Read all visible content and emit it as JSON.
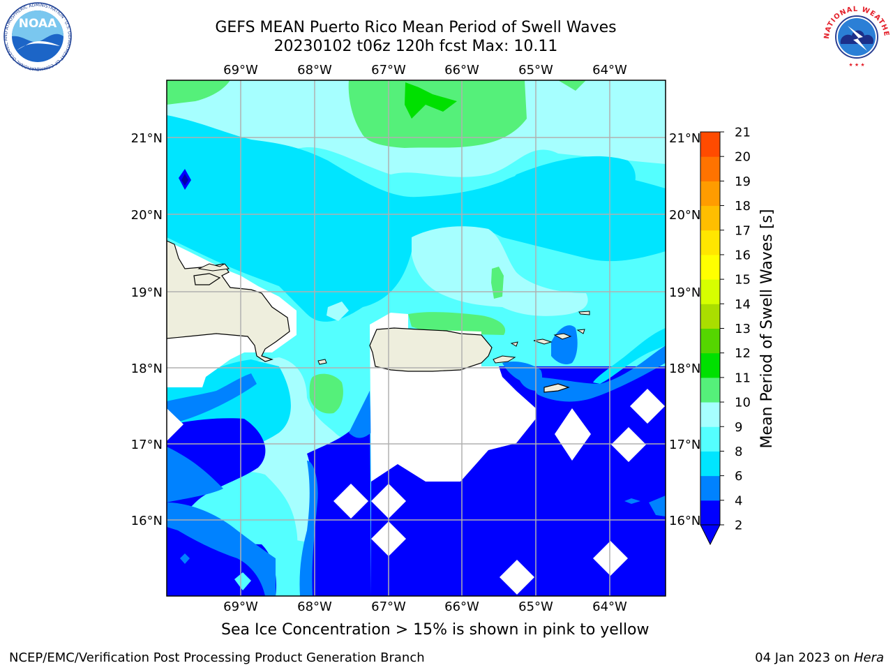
{
  "header": {
    "title_line_1": "GEFS MEAN Puerto Rico Mean Period of Swell Waves",
    "title_line_2": "20230102 t06z 120h fcst   Max: 10.11"
  },
  "logos": {
    "noaa_text": "NOAA",
    "noaa_ring_text": "NATIONAL OCEANIC AND ATMOSPHERIC ADMINISTRATION · U.S. DEPARTMENT OF COMMERCE",
    "nws_ring_text": "NATIONAL WEATHER SERVICE"
  },
  "map": {
    "lon_labels": [
      "69°W",
      "68°W",
      "67°W",
      "66°W",
      "65°W",
      "64°W"
    ],
    "lat_labels": [
      "21°N",
      "20°N",
      "19°N",
      "18°N",
      "17°N",
      "16°N"
    ]
  },
  "colorbar": {
    "label": "Mean Period of Swell Waves [s]",
    "ticks": [
      "2",
      "4",
      "6",
      "8",
      "9",
      "10",
      "11",
      "12",
      "13",
      "14",
      "15",
      "16",
      "17",
      "18",
      "19",
      "20",
      "21"
    ],
    "colors": [
      "#0000ff",
      "#0082ff",
      "#00e5ff",
      "#54ffff",
      "#a6ffff",
      "#55f07a",
      "#00e000",
      "#55d600",
      "#aade00",
      "#d7ff00",
      "#ffff00",
      "#ffe600",
      "#ffbe00",
      "#ff9c00",
      "#ff7300",
      "#ff4b00",
      "#ff0000"
    ]
  },
  "footnote": "Sea Ice Concentration > 15% is shown in pink to yellow",
  "credits": {
    "left": "NCEP/EMC/Verification Post Processing Product Generation Branch",
    "right_date": "04 Jan 2023 on ",
    "right_host": "Hera"
  }
}
